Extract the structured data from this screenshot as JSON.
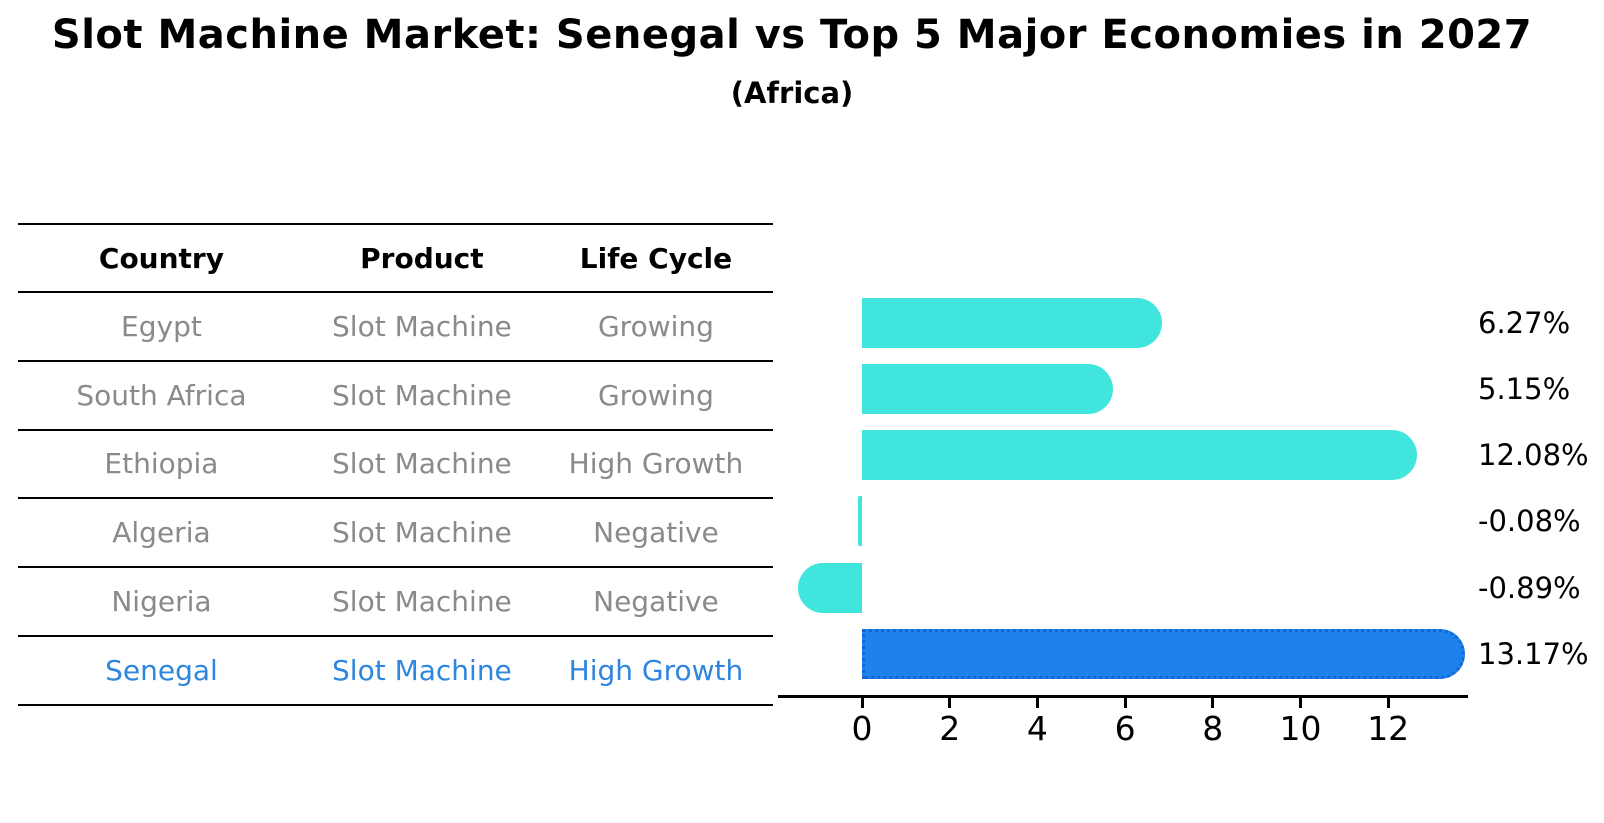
{
  "title": "Slot Machine Market: Senegal vs Top 5 Major Economies in 2027",
  "subtitle": "(Africa)",
  "table": {
    "headers": [
      "Country",
      "Product",
      "Life Cycle"
    ],
    "rows": [
      [
        "Egypt",
        "Slot Machine",
        "Growing"
      ],
      [
        "South Africa",
        "Slot Machine",
        "Growing"
      ],
      [
        "Ethiopia",
        "Slot Machine",
        "High Growth"
      ],
      [
        "Algeria",
        "Slot Machine",
        "Negative"
      ],
      [
        "Nigeria",
        "Slot Machine",
        "Negative"
      ],
      [
        "Senegal",
        "Slot Machine",
        "High Growth"
      ]
    ],
    "highlight_row_index": 5
  },
  "chart_data": {
    "type": "bar",
    "orientation": "horizontal",
    "categories": [
      "Egypt",
      "South Africa",
      "Ethiopia",
      "Algeria",
      "Nigeria",
      "Senegal"
    ],
    "values": [
      6.27,
      5.15,
      12.08,
      -0.08,
      -0.89,
      13.17
    ],
    "value_labels": [
      "6.27%",
      "5.15%",
      "12.08%",
      "-0.08%",
      "-0.89%",
      "13.17%"
    ],
    "highlight_index": 5,
    "xticks": [
      "0",
      "2",
      "4",
      "6",
      "8",
      "10",
      "12"
    ],
    "xtick_values": [
      0,
      2,
      4,
      6,
      8,
      10,
      12
    ],
    "xlim": [
      -1.95,
      13.8
    ],
    "grid": false,
    "legend": false,
    "title": "Slot Machine Market: Senegal vs Top 5 Major Economies in 2027",
    "subtitle": "(Africa)",
    "bar_color": "#40E5DE",
    "highlight_bar_color": "#1E82EC",
    "highlight_border_color": "#1467D2",
    "value_label_color": "#000000"
  },
  "colors": {
    "text_primary": "#000000",
    "text_muted": "#8a8a8a",
    "highlight_text": "#2E86DE",
    "background": "#ffffff"
  }
}
